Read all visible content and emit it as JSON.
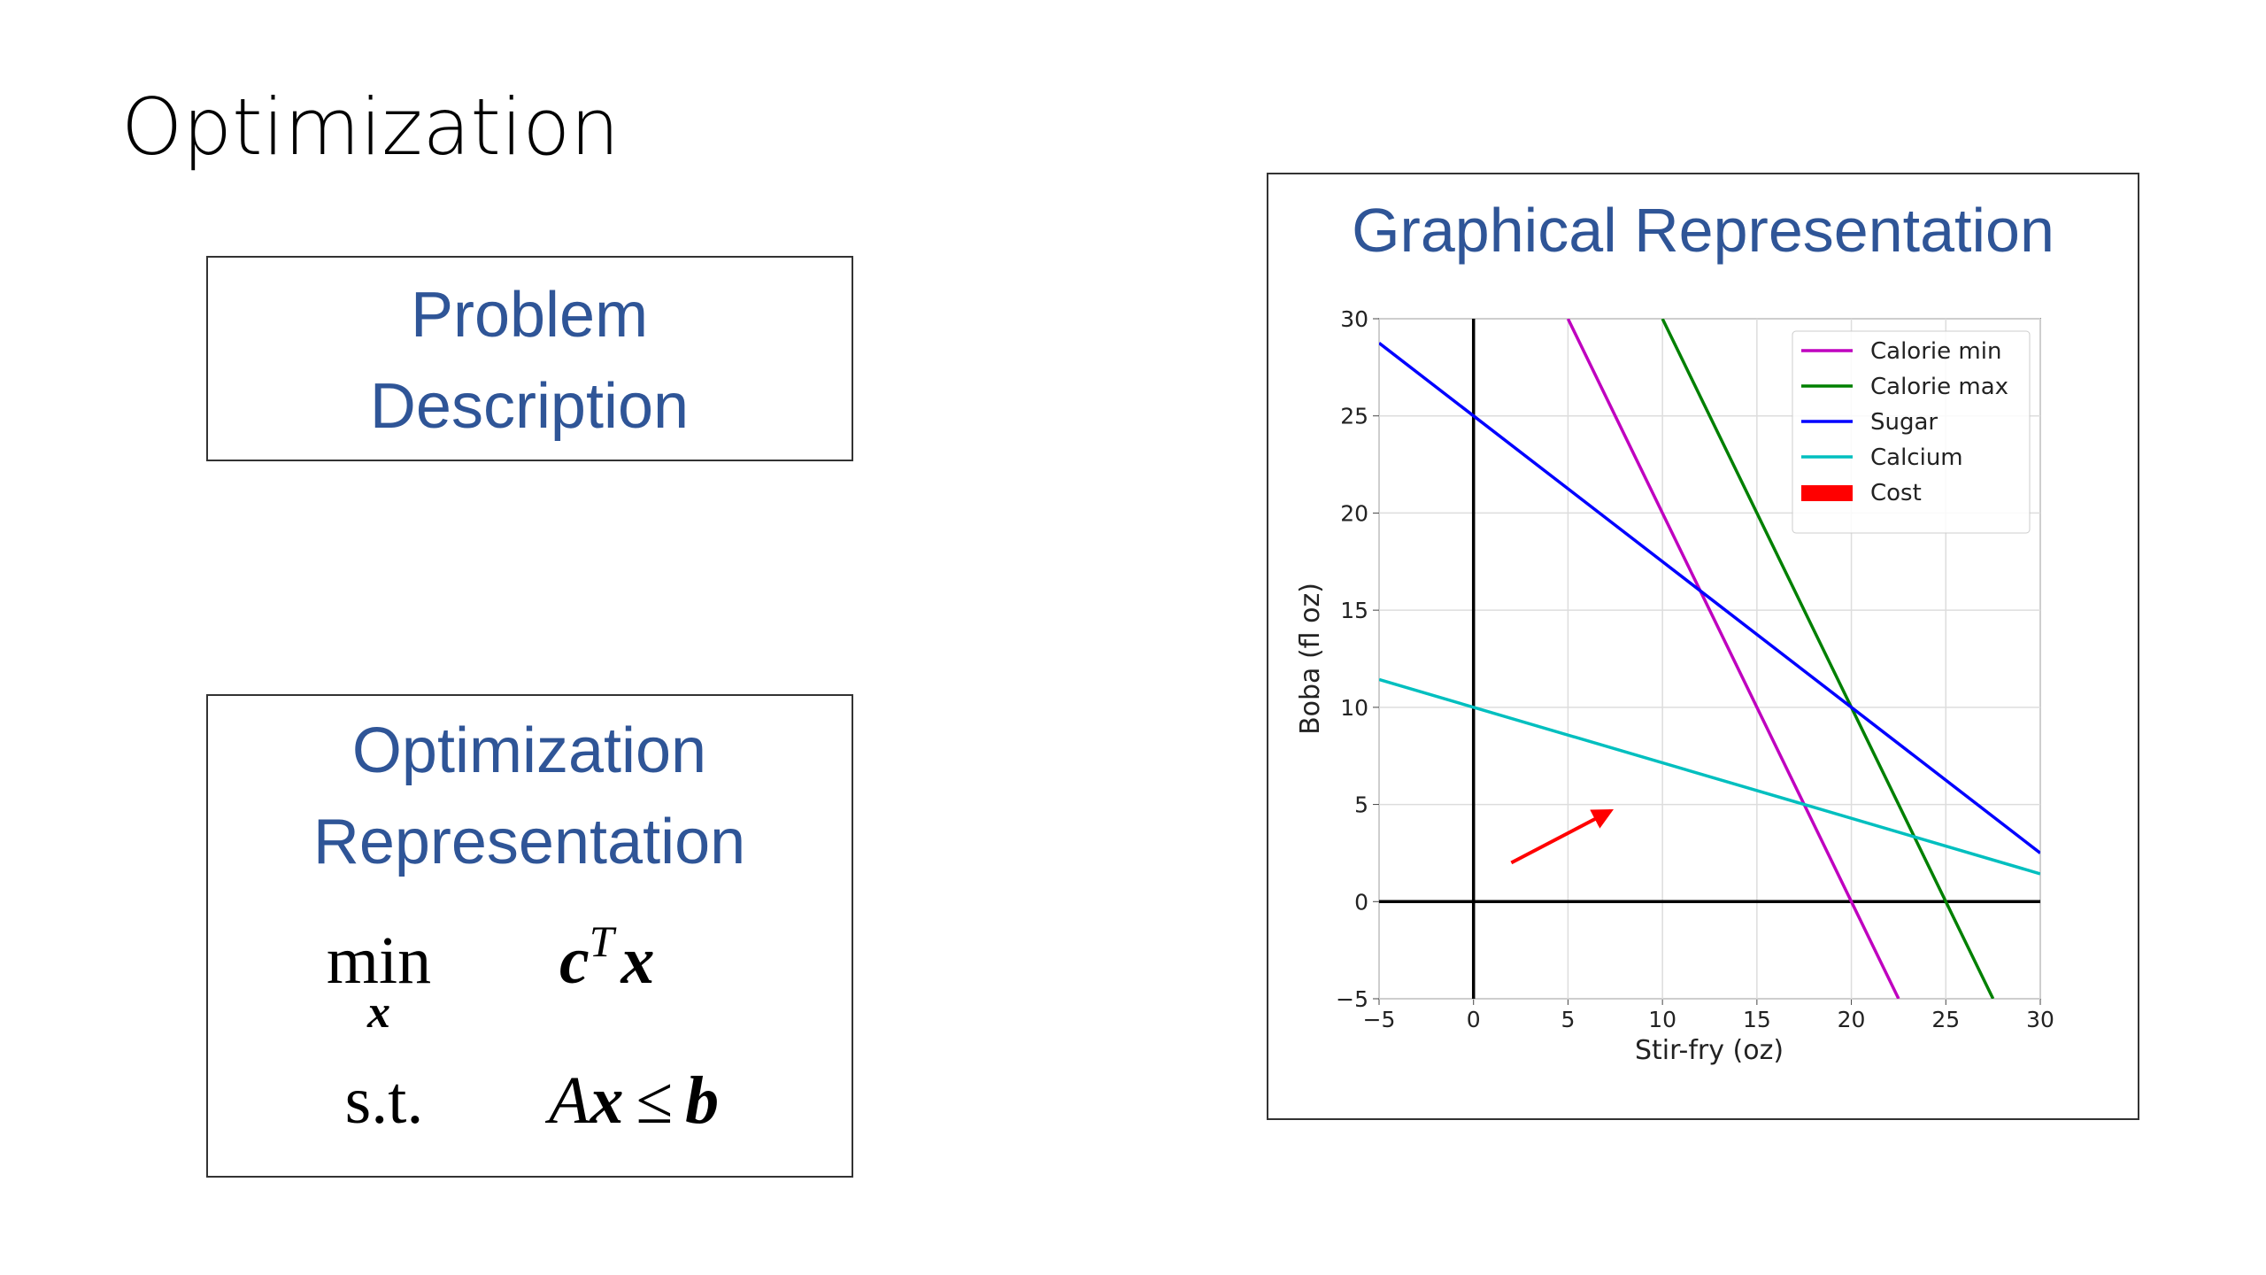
{
  "slide_title": "Optimization",
  "problem_box": {
    "lines": [
      "Problem",
      "Description"
    ]
  },
  "optimization_box": {
    "lines": [
      "Optimization",
      "Representation"
    ],
    "math": {
      "min": "min",
      "min_sub": "x",
      "objective": [
        "c",
        "T",
        "x"
      ],
      "st": "s.t.",
      "constraint": [
        "A",
        "x",
        "≤",
        "b"
      ]
    }
  },
  "chart_data": {
    "type": "line",
    "title": "Graphical Representation",
    "xlabel": "Stir-fry (oz)",
    "ylabel": "Boba (fl oz)",
    "xlim": [
      -5,
      30
    ],
    "ylim": [
      -5,
      30
    ],
    "xticks": [
      {
        "value": -5,
        "label": "−5"
      },
      0,
      5,
      10,
      15,
      20,
      25,
      30
    ],
    "yticks": [
      {
        "value": -5,
        "label": "−5"
      },
      0,
      5,
      10,
      15,
      20,
      25,
      30
    ],
    "grid": true,
    "zero_lines": true,
    "legend": "upper right",
    "series": [
      {
        "name": "Calorie min",
        "color": "#bf00bf",
        "x": [
          5,
          22.5
        ],
        "values": [
          30,
          -5
        ]
      },
      {
        "name": "Calorie max",
        "color": "#008000",
        "x": [
          10,
          27.5
        ],
        "values": [
          30,
          -5
        ]
      },
      {
        "name": "Sugar",
        "color": "#0000ff",
        "x": [
          -5,
          30
        ],
        "values": [
          28.75,
          2.5
        ]
      },
      {
        "name": "Calcium",
        "color": "#00bfbf",
        "x": [
          -5,
          30
        ],
        "values": [
          11.43,
          1.43
        ]
      },
      {
        "name": "Cost",
        "color": "#ff0000",
        "marker": "arrow",
        "x": [
          2,
          7.25
        ],
        "values": [
          2,
          4.67
        ]
      }
    ]
  }
}
